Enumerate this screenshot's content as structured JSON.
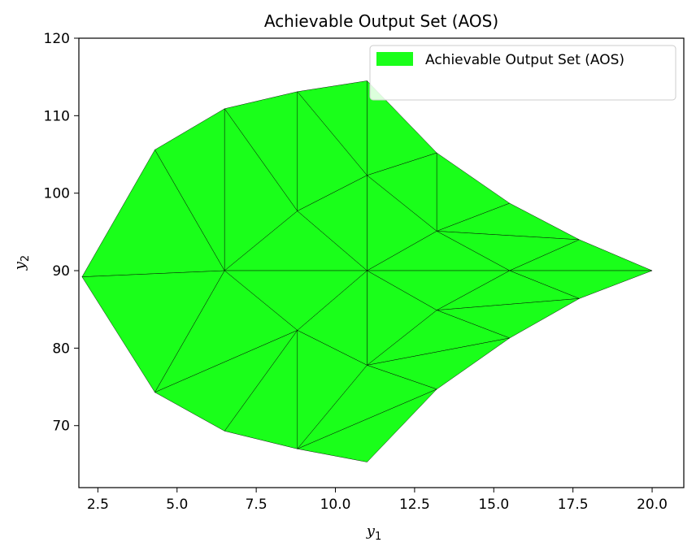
{
  "chart_data": {
    "type": "area",
    "title": "Achievable Output Set (AOS)",
    "xlabel": {
      "base": "y",
      "sub": "1"
    },
    "ylabel": {
      "base": "y",
      "sub": "2"
    },
    "xlim": [
      1.9,
      21.0
    ],
    "ylim": [
      62,
      120
    ],
    "xticks": [
      2.5,
      5.0,
      7.5,
      10.0,
      12.5,
      15.0,
      17.5,
      20.0
    ],
    "xtick_labels": [
      "2.5",
      "5.0",
      "7.5",
      "10.0",
      "12.5",
      "15.0",
      "17.5",
      "20.0"
    ],
    "yticks": [
      70,
      80,
      90,
      100,
      110,
      120
    ],
    "ytick_labels": [
      "70",
      "80",
      "90",
      "100",
      "110",
      "120"
    ],
    "grid": false,
    "legend": {
      "entries": [
        "Achievable Output Set (AOS)"
      ],
      "position": "top-right"
    },
    "fill_color": "#1aff1a",
    "edge_color": "#000000",
    "vertices": [
      [
        2.0,
        89.2
      ],
      [
        4.3,
        105.6
      ],
      [
        6.5,
        110.9
      ],
      [
        8.8,
        113.1
      ],
      [
        11.0,
        114.5
      ],
      [
        13.2,
        105.2
      ],
      [
        15.5,
        98.7
      ],
      [
        17.7,
        94.0
      ],
      [
        20.0,
        90.0
      ],
      [
        17.7,
        86.4
      ],
      [
        15.5,
        81.3
      ],
      [
        13.2,
        74.7
      ],
      [
        11.0,
        65.3
      ],
      [
        8.8,
        67.0
      ],
      [
        6.5,
        69.3
      ],
      [
        4.3,
        74.3
      ],
      [
        6.5,
        90.0
      ],
      [
        8.8,
        97.7
      ],
      [
        11.0,
        102.3
      ],
      [
        13.2,
        95.1
      ],
      [
        15.5,
        90.0
      ],
      [
        13.2,
        84.9
      ],
      [
        11.0,
        77.8
      ],
      [
        8.8,
        82.3
      ],
      [
        11.0,
        90.0
      ]
    ],
    "triangles": [
      [
        0,
        1,
        16
      ],
      [
        0,
        16,
        15
      ],
      [
        1,
        2,
        16
      ],
      [
        2,
        17,
        16
      ],
      [
        2,
        3,
        17
      ],
      [
        3,
        18,
        17
      ],
      [
        3,
        4,
        18
      ],
      [
        4,
        5,
        18
      ],
      [
        16,
        17,
        24
      ],
      [
        17,
        18,
        24
      ],
      [
        18,
        19,
        24
      ],
      [
        18,
        5,
        19
      ],
      [
        5,
        6,
        19
      ],
      [
        19,
        6,
        7
      ],
      [
        19,
        7,
        20
      ],
      [
        7,
        8,
        20
      ],
      [
        24,
        19,
        20
      ],
      [
        20,
        8,
        9
      ],
      [
        20,
        9,
        21
      ],
      [
        24,
        20,
        21
      ],
      [
        21,
        9,
        10
      ],
      [
        21,
        10,
        22
      ],
      [
        10,
        11,
        22
      ],
      [
        24,
        21,
        22
      ],
      [
        23,
        24,
        22
      ],
      [
        16,
        24,
        23
      ],
      [
        15,
        16,
        23
      ],
      [
        15,
        23,
        14
      ],
      [
        14,
        23,
        13
      ],
      [
        23,
        22,
        13
      ],
      [
        22,
        11,
        13
      ],
      [
        11,
        12,
        13
      ]
    ]
  }
}
